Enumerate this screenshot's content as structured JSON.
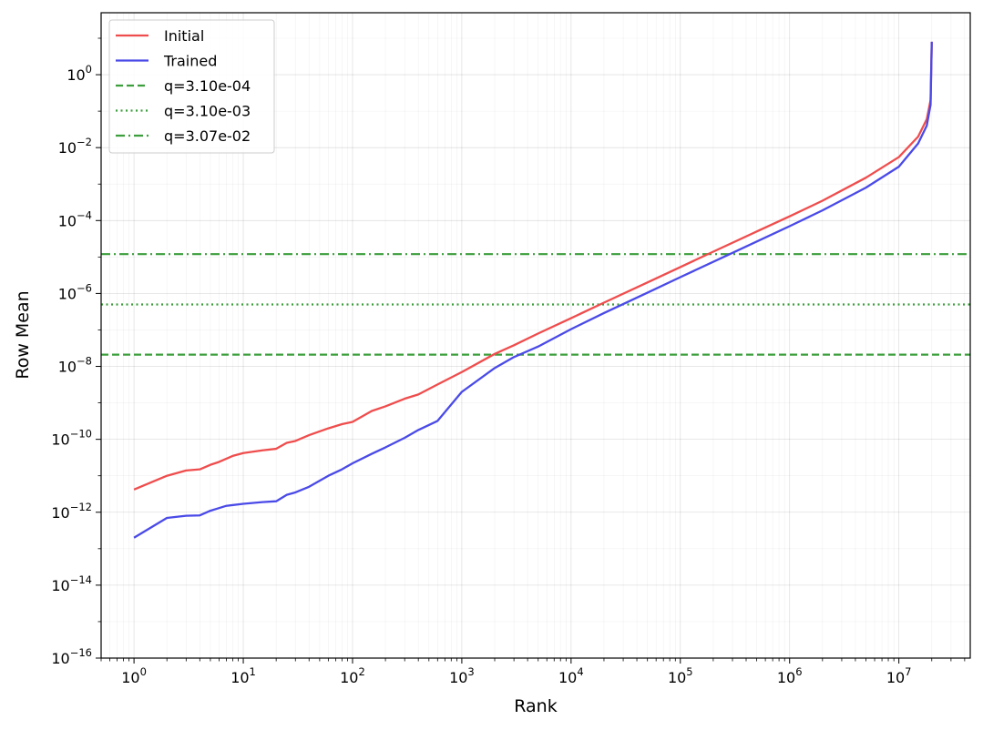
{
  "chart_data": {
    "type": "line",
    "xlabel": "Rank",
    "ylabel": "Row Mean",
    "xscale": "log",
    "yscale": "log",
    "xlim": [
      0.5,
      45000000
    ],
    "ylim": [
      1e-16,
      50
    ],
    "grid": true,
    "legend_position": "top-left",
    "x_ticks": [
      {
        "value": 1,
        "base": "10",
        "exp": "0"
      },
      {
        "value": 10,
        "base": "10",
        "exp": "1"
      },
      {
        "value": 100,
        "base": "10",
        "exp": "2"
      },
      {
        "value": 1000,
        "base": "10",
        "exp": "3"
      },
      {
        "value": 10000,
        "base": "10",
        "exp": "4"
      },
      {
        "value": 100000,
        "base": "10",
        "exp": "5"
      },
      {
        "value": 1000000,
        "base": "10",
        "exp": "6"
      },
      {
        "value": 10000000,
        "base": "10",
        "exp": "7"
      }
    ],
    "y_ticks": [
      {
        "value": 1e-16,
        "base": "10",
        "exp": "−16"
      },
      {
        "value": 1e-14,
        "base": "10",
        "exp": "−14"
      },
      {
        "value": 1e-12,
        "base": "10",
        "exp": "−12"
      },
      {
        "value": 1e-10,
        "base": "10",
        "exp": "−10"
      },
      {
        "value": 1e-08,
        "base": "10",
        "exp": "−8"
      },
      {
        "value": 1e-06,
        "base": "10",
        "exp": "−6"
      },
      {
        "value": 0.0001,
        "base": "10",
        "exp": "−4"
      },
      {
        "value": 0.01,
        "base": "10",
        "exp": "−2"
      },
      {
        "value": 1,
        "base": "10",
        "exp": "0"
      }
    ],
    "series": [
      {
        "name": "Initial",
        "color": "#ef4d4d",
        "points": [
          [
            1,
            4.2e-12
          ],
          [
            2,
            1e-11
          ],
          [
            3,
            1.4e-11
          ],
          [
            4,
            1.5e-11
          ],
          [
            5,
            2e-11
          ],
          [
            6,
            2.4e-11
          ],
          [
            8,
            3.5e-11
          ],
          [
            10,
            4.2e-11
          ],
          [
            15,
            5e-11
          ],
          [
            20,
            5.5e-11
          ],
          [
            25,
            8e-11
          ],
          [
            30,
            9e-11
          ],
          [
            40,
            1.3e-10
          ],
          [
            60,
            2e-10
          ],
          [
            80,
            2.6e-10
          ],
          [
            100,
            3e-10
          ],
          [
            150,
            6e-10
          ],
          [
            200,
            8e-10
          ],
          [
            300,
            1.3e-09
          ],
          [
            400,
            1.7e-09
          ],
          [
            600,
            3.2e-09
          ],
          [
            1000,
            7e-09
          ],
          [
            2000,
            2.2e-08
          ],
          [
            3000,
            3.8e-08
          ],
          [
            5000,
            8e-08
          ],
          [
            10000,
            2.1e-07
          ],
          [
            20000,
            5.6e-07
          ],
          [
            50000,
            2e-06
          ],
          [
            100000,
            5.3e-06
          ],
          [
            200000,
            1.4e-05
          ],
          [
            500000,
            5e-05
          ],
          [
            1000000,
            0.00013
          ],
          [
            2000000,
            0.00035
          ],
          [
            5000000,
            0.0015
          ],
          [
            10000000,
            0.0055
          ],
          [
            15000000,
            0.02
          ],
          [
            18000000,
            0.06
          ],
          [
            19500000,
            0.2
          ],
          [
            20000000,
            8.0
          ]
        ]
      },
      {
        "name": "Trained",
        "color": "#4a4ae8",
        "points": [
          [
            1,
            2e-13
          ],
          [
            2,
            7e-13
          ],
          [
            3,
            8e-13
          ],
          [
            4,
            8.2e-13
          ],
          [
            5,
            1.1e-12
          ],
          [
            6,
            1.3e-12
          ],
          [
            7,
            1.5e-12
          ],
          [
            10,
            1.7e-12
          ],
          [
            15,
            1.9e-12
          ],
          [
            20,
            2e-12
          ],
          [
            25,
            3e-12
          ],
          [
            30,
            3.5e-12
          ],
          [
            40,
            5e-12
          ],
          [
            60,
            1e-11
          ],
          [
            80,
            1.5e-11
          ],
          [
            100,
            2.2e-11
          ],
          [
            150,
            4e-11
          ],
          [
            200,
            6e-11
          ],
          [
            300,
            1.1e-10
          ],
          [
            400,
            1.8e-10
          ],
          [
            600,
            3.2e-10
          ],
          [
            1000,
            2e-09
          ],
          [
            2000,
            9e-09
          ],
          [
            3000,
            1.8e-08
          ],
          [
            5000,
            3.5e-08
          ],
          [
            10000,
            1.05e-07
          ],
          [
            20000,
            2.9e-07
          ],
          [
            50000,
            1.05e-06
          ],
          [
            100000,
            2.8e-06
          ],
          [
            300000,
            1.3e-05
          ],
          [
            1000000,
            7e-05
          ],
          [
            2000000,
            0.00019
          ],
          [
            5000000,
            0.0008
          ],
          [
            10000000,
            0.003
          ],
          [
            15000000,
            0.013
          ],
          [
            18000000,
            0.04
          ],
          [
            19500000,
            0.15
          ],
          [
            20000000,
            8.0
          ]
        ]
      }
    ],
    "hlines": [
      {
        "name": "q=3.10e-04",
        "value": 2.1e-08,
        "style": "dashed",
        "color": "#3c9e3c"
      },
      {
        "name": "q=3.10e-03",
        "value": 5e-07,
        "style": "dotted",
        "color": "#3c9e3c"
      },
      {
        "name": "q=3.07e-02",
        "value": 1.2e-05,
        "style": "dashdot",
        "color": "#3c9e3c"
      }
    ]
  }
}
